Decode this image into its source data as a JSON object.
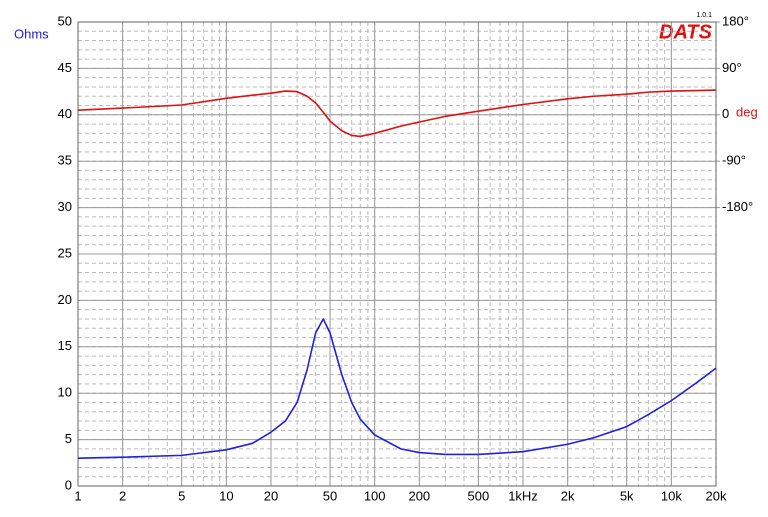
{
  "chart_data": {
    "type": "line",
    "title": "DATS",
    "subtitle": "1.0.1",
    "y_label": "Ohms",
    "y2_label": "deg",
    "log_x": true,
    "grid": true,
    "minor_grid": true,
    "x": [
      1,
      2,
      5,
      10,
      15,
      20,
      25,
      30,
      35,
      40,
      45,
      50,
      60,
      70,
      80,
      100,
      150,
      200,
      300,
      500,
      1000,
      2000,
      3000,
      5000,
      7000,
      10000,
      15000,
      20000
    ],
    "series": [
      {
        "name": "Ohms",
        "color": "#2020e0",
        "values": [
          3.0,
          3.1,
          3.3,
          3.9,
          4.6,
          5.8,
          7.0,
          9.0,
          12.5,
          16.5,
          18.0,
          16.5,
          12.0,
          9.0,
          7.2,
          5.5,
          4.0,
          3.6,
          3.4,
          3.4,
          3.7,
          4.5,
          5.2,
          6.4,
          7.7,
          9.2,
          11.2,
          12.7
        ]
      },
      {
        "name": "deg",
        "color": "#e01010",
        "axis": "y2",
        "values": [
          9,
          13,
          19,
          32,
          38,
          42,
          46,
          45,
          36,
          23,
          5,
          -12,
          -31,
          -40,
          -42,
          -36,
          -22,
          -14,
          -3,
          7,
          20,
          31,
          36,
          40,
          44,
          46,
          47,
          48
        ]
      }
    ],
    "xlim": [
      1,
      20000
    ],
    "xticks": [
      1,
      2,
      5,
      10,
      20,
      50,
      100,
      200,
      500,
      {
        "value": 1000,
        "label": "1kHz"
      },
      {
        "value": 2000,
        "label": "2k"
      },
      {
        "value": 5000,
        "label": "5k"
      },
      {
        "value": 10000,
        "label": "10k"
      },
      {
        "value": 20000,
        "label": "20k"
      }
    ],
    "ylim": [
      0,
      50
    ],
    "yticks": [
      0,
      5,
      10,
      15,
      20,
      25,
      30,
      35,
      40,
      45,
      50
    ],
    "y2lim": [
      -720,
      180
    ],
    "y2ticks": [
      {
        "value": 180,
        "label": "180°"
      },
      {
        "value": 90,
        "label": "90°"
      },
      0,
      {
        "value": -90,
        "label": "-90°"
      },
      {
        "value": -180,
        "label": "-180°"
      }
    ]
  }
}
